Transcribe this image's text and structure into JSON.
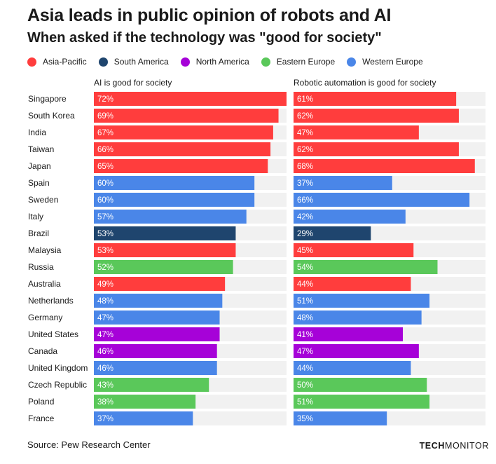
{
  "header": {
    "title": "Asia leads in public opinion of robots and AI",
    "subtitle": "When asked if the technology was \"good for society\""
  },
  "legend": [
    {
      "label": "Asia-Pacific",
      "color": "#ff3d3d"
    },
    {
      "label": "South America",
      "color": "#1f456e"
    },
    {
      "label": "North America",
      "color": "#a602d8"
    },
    {
      "label": "Eastern Europe",
      "color": "#5ac85a"
    },
    {
      "label": "Western Europe",
      "color": "#4a86e8"
    }
  ],
  "footer": {
    "source": "Source: Pew Research Center",
    "brand_part1": "TECH",
    "brand_part2": "MONITOR"
  },
  "chart_data": {
    "type": "bar",
    "orientation": "horizontal",
    "categories": [
      "Singapore",
      "South Korea",
      "India",
      "Taiwan",
      "Japan",
      "Spain",
      "Sweden",
      "Italy",
      "Brazil",
      "Malaysia",
      "Russia",
      "Australia",
      "Netherlands",
      "Germany",
      "United States",
      "Canada",
      "United Kingdom",
      "Czech Republic",
      "Poland",
      "France"
    ],
    "regions": [
      "Asia-Pacific",
      "Asia-Pacific",
      "Asia-Pacific",
      "Asia-Pacific",
      "Asia-Pacific",
      "Western Europe",
      "Western Europe",
      "Western Europe",
      "South America",
      "Asia-Pacific",
      "Eastern Europe",
      "Asia-Pacific",
      "Western Europe",
      "Western Europe",
      "North America",
      "North America",
      "Western Europe",
      "Eastern Europe",
      "Eastern Europe",
      "Western Europe"
    ],
    "series": [
      {
        "name": "AI is good for society",
        "values": [
          72,
          69,
          67,
          66,
          65,
          60,
          60,
          57,
          53,
          53,
          52,
          49,
          48,
          47,
          47,
          46,
          46,
          43,
          38,
          37
        ]
      },
      {
        "name": "Robotic automation is good for society",
        "values": [
          61,
          62,
          47,
          62,
          68,
          37,
          66,
          42,
          29,
          45,
          54,
          44,
          51,
          48,
          41,
          47,
          44,
          50,
          51,
          35
        ]
      }
    ],
    "value_suffix": "%",
    "xlim": [
      0,
      72
    ],
    "grid": false,
    "background_track": true,
    "legend_position": "top"
  }
}
